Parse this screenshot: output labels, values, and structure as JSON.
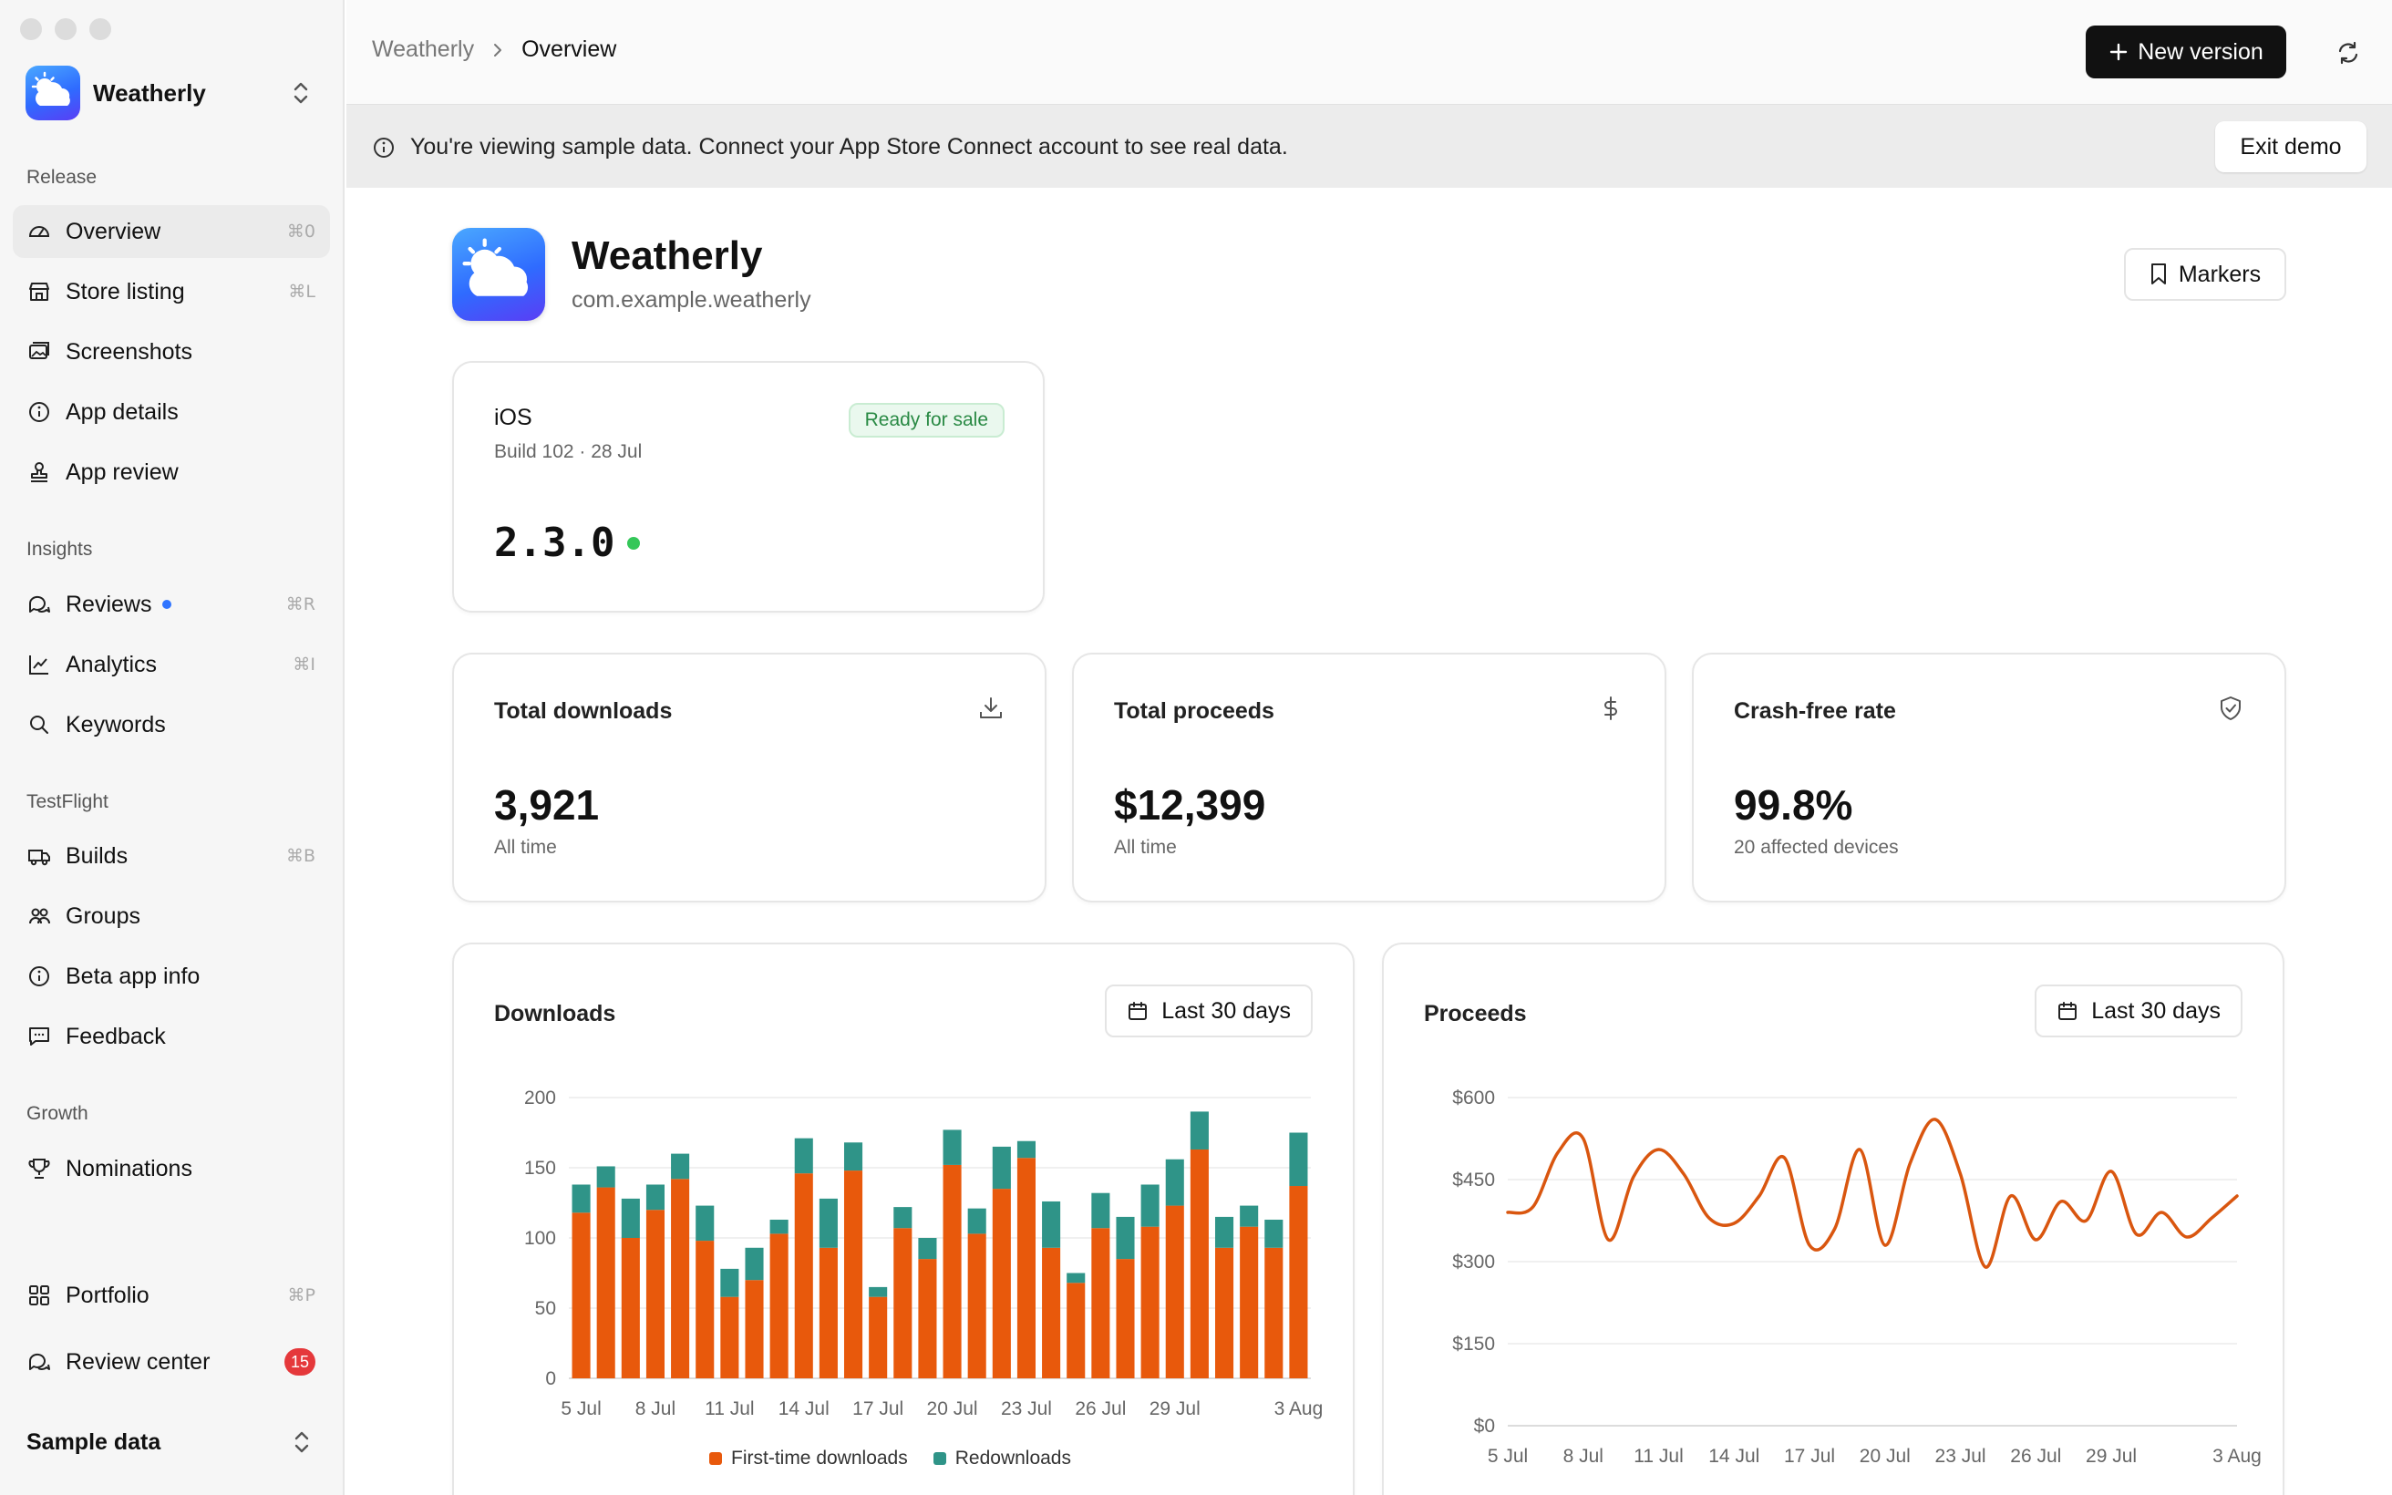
{
  "sidebar": {
    "app_name": "Weatherly",
    "sections": {
      "release": "Release",
      "insights": "Insights",
      "testflight": "TestFlight",
      "growth": "Growth"
    },
    "items": {
      "overview": {
        "label": "Overview",
        "shortcut": "⌘0"
      },
      "store_listing": {
        "label": "Store listing",
        "shortcut": "⌘L"
      },
      "screenshots": {
        "label": "Screenshots"
      },
      "app_details": {
        "label": "App details"
      },
      "app_review": {
        "label": "App review"
      },
      "reviews": {
        "label": "Reviews",
        "shortcut": "⌘R"
      },
      "analytics": {
        "label": "Analytics",
        "shortcut": "⌘I"
      },
      "keywords": {
        "label": "Keywords"
      },
      "builds": {
        "label": "Builds",
        "shortcut": "⌘B"
      },
      "groups": {
        "label": "Groups"
      },
      "beta_app_info": {
        "label": "Beta app info"
      },
      "feedback": {
        "label": "Feedback"
      },
      "nominations": {
        "label": "Nominations"
      },
      "portfolio": {
        "label": "Portfolio",
        "shortcut": "⌘P"
      },
      "review_center": {
        "label": "Review center",
        "badge": "15"
      }
    },
    "footer": "Sample data"
  },
  "topbar": {
    "breadcrumb_root": "Weatherly",
    "breadcrumb_current": "Overview",
    "new_version_label": "New version"
  },
  "banner": {
    "text": "You're viewing sample data. Connect your App Store Connect account to see real data.",
    "exit_label": "Exit demo"
  },
  "app": {
    "name": "Weatherly",
    "bundle_id": "com.example.weatherly",
    "markers_label": "Markers"
  },
  "ios": {
    "platform": "iOS",
    "build": "Build 102 · 28 Jul",
    "status": "Ready for sale",
    "version": "2.3.0"
  },
  "stats": {
    "downloads": {
      "title": "Total downloads",
      "value": "3,921",
      "sub": "All time"
    },
    "proceeds": {
      "title": "Total proceeds",
      "value": "$12,399",
      "sub": "All time"
    },
    "crash": {
      "title": "Crash-free rate",
      "value": "99.8%",
      "sub": "20 affected devices"
    }
  },
  "colors": {
    "first_time": "#e8590c",
    "redownload": "#2f9488",
    "proceeds_line": "#d9560f"
  },
  "chart_data": [
    {
      "type": "bar",
      "title": "Downloads",
      "range_label": "Last 30 days",
      "stacked": true,
      "ylim": [
        0,
        200
      ],
      "yticks": [
        0,
        50,
        100,
        150,
        200
      ],
      "xtick_labels": [
        "5 Jul",
        "8 Jul",
        "11 Jul",
        "14 Jul",
        "17 Jul",
        "20 Jul",
        "23 Jul",
        "26 Jul",
        "29 Jul",
        "3 Aug"
      ],
      "xtick_index": [
        0,
        3,
        6,
        9,
        12,
        15,
        18,
        21,
        24,
        29
      ],
      "series": [
        {
          "name": "First-time downloads",
          "values": [
            118,
            136,
            100,
            120,
            142,
            98,
            58,
            70,
            103,
            146,
            93,
            148,
            58,
            107,
            85,
            152,
            103,
            135,
            157,
            93,
            68,
            107,
            85,
            108,
            123,
            163,
            93,
            108,
            93,
            137
          ]
        },
        {
          "name": "Redownloads",
          "values": [
            20,
            15,
            28,
            18,
            18,
            25,
            20,
            23,
            10,
            25,
            35,
            20,
            7,
            15,
            15,
            25,
            18,
            30,
            12,
            33,
            7,
            25,
            30,
            30,
            33,
            27,
            22,
            15,
            20,
            38
          ]
        }
      ]
    },
    {
      "type": "line",
      "title": "Proceeds",
      "range_label": "Last 30 days",
      "ylim": [
        0,
        600
      ],
      "ytick_labels": [
        "$0",
        "$150",
        "$300",
        "$450",
        "$600"
      ],
      "yticks": [
        0,
        150,
        300,
        450,
        600
      ],
      "xtick_labels": [
        "5 Jul",
        "8 Jul",
        "11 Jul",
        "14 Jul",
        "17 Jul",
        "20 Jul",
        "23 Jul",
        "26 Jul",
        "29 Jul",
        "3 Aug"
      ],
      "xtick_index": [
        0,
        3,
        6,
        9,
        12,
        15,
        18,
        21,
        24,
        29
      ],
      "series": [
        {
          "values": [
            390,
            400,
            500,
            525,
            340,
            455,
            505,
            460,
            380,
            370,
            420,
            490,
            330,
            360,
            505,
            330,
            480,
            560,
            460,
            290,
            420,
            340,
            410,
            375,
            465,
            350,
            390,
            345,
            380,
            420
          ]
        }
      ]
    }
  ]
}
